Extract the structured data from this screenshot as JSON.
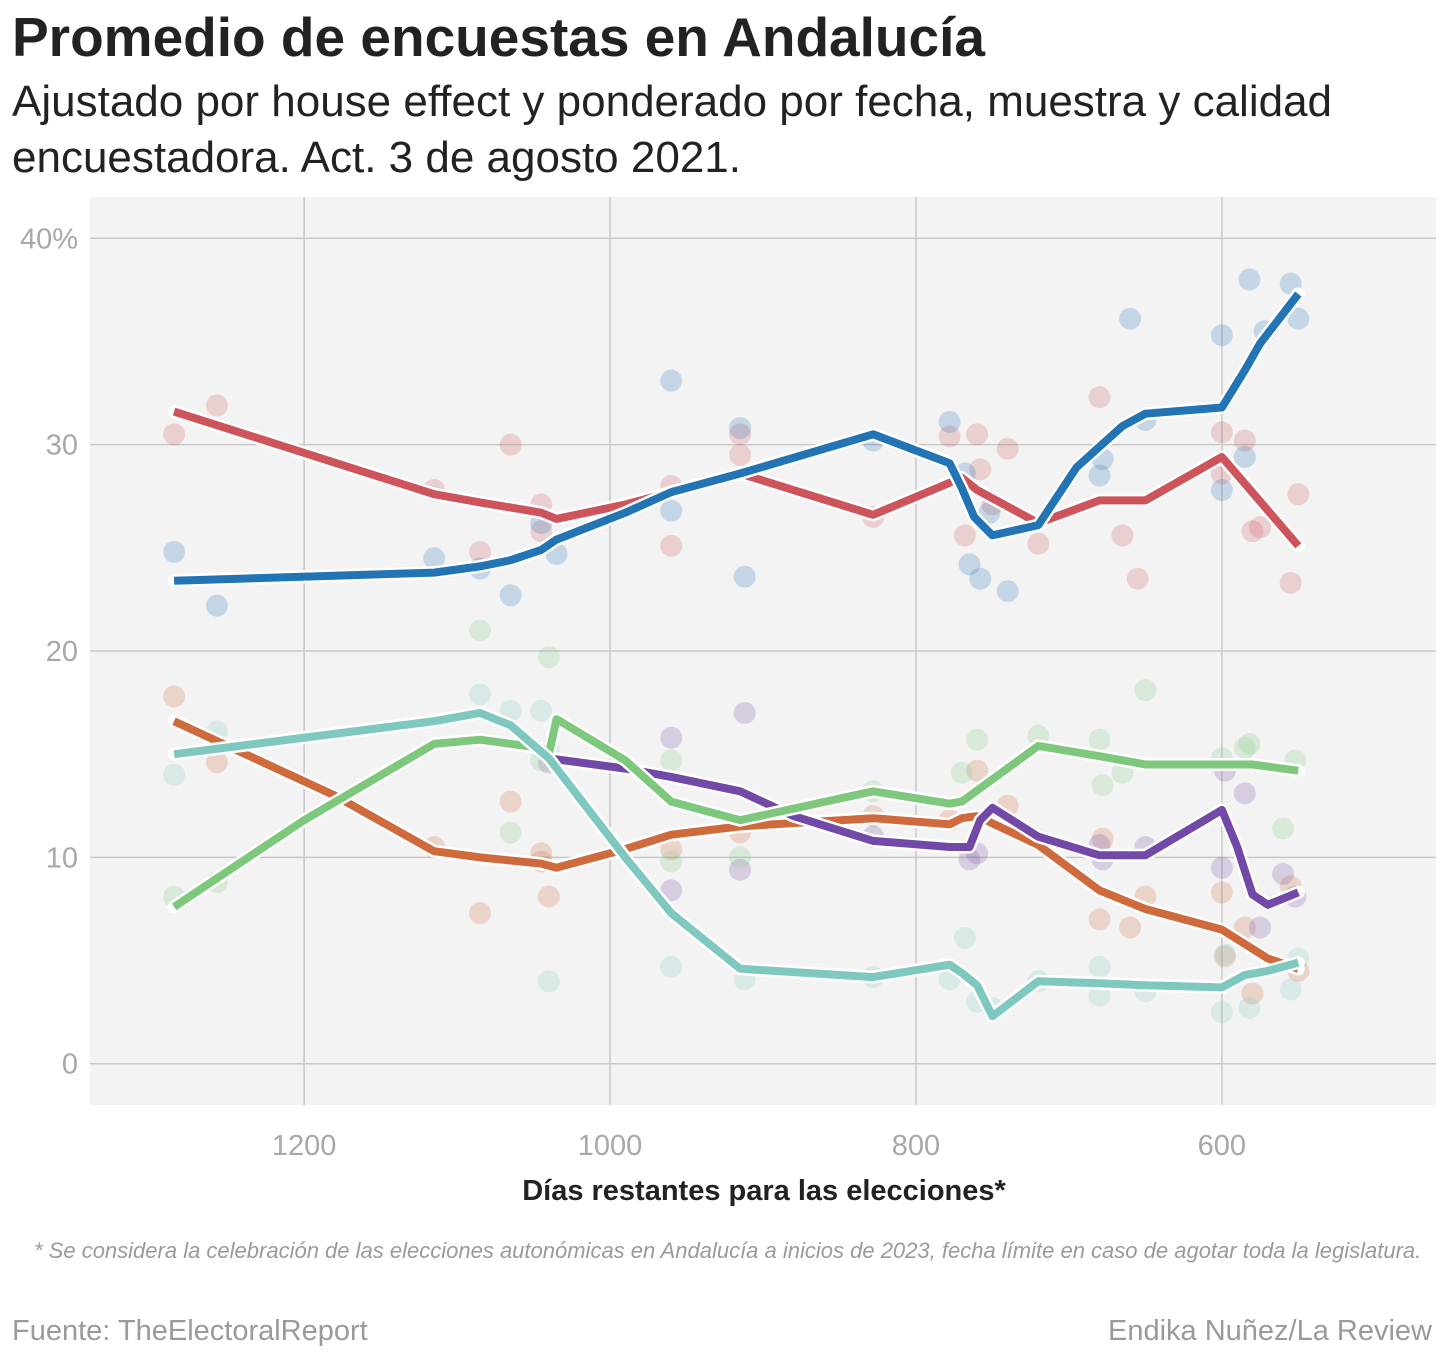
{
  "header": {
    "title": "Promedio de encuestas en Andalucía",
    "subtitle": "Ajustado por house effect y ponderado por fecha, muestra y calidad encuestadora. Act. 3 de agosto 2021."
  },
  "footer": {
    "note": "* Se considera la celebración de las elecciones autonómicas en Andalucía a inicios de 2023, fecha límite en caso de agotar toda la legislatura.",
    "source": "Fuente: TheElectoralReport",
    "credit": "Endika Nuñez/La Review"
  },
  "chart_data": {
    "type": "line",
    "xlabel": "Días restantes para las elecciones*",
    "ylabel": "",
    "x_reversed": true,
    "xlim": [
      1340,
      460
    ],
    "ylim": [
      -2,
      42
    ],
    "x_ticks": [
      1200,
      1000,
      800,
      600
    ],
    "x_tick_labels": [
      "1200",
      "1000",
      "800",
      "600"
    ],
    "y_ticks": [
      0,
      10,
      20,
      30,
      40
    ],
    "y_tick_labels": [
      "0",
      "10",
      "20",
      "30",
      "40%"
    ],
    "grid": true,
    "background": "#f3f3f3",
    "series": [
      {
        "color": "#cd545a",
        "x": [
          1285,
          1115,
          1085,
          1045,
          1035,
          990,
          960,
          915,
          828,
          770,
          760,
          720,
          680,
          650,
          600,
          550
        ],
        "y": [
          31.6,
          27.6,
          27.2,
          26.7,
          26.4,
          27.1,
          27.7,
          28.6,
          26.6,
          28.4,
          27.8,
          26.2,
          27.3,
          27.3,
          29.4,
          25.1
        ],
        "points": [
          [
            1285,
            30.5
          ],
          [
            1257,
            31.9
          ],
          [
            1115,
            27.8
          ],
          [
            1085,
            24.8
          ],
          [
            1065,
            30.0
          ],
          [
            1045,
            27.1
          ],
          [
            1045,
            25.8
          ],
          [
            960,
            25.1
          ],
          [
            960,
            28.0
          ],
          [
            915,
            30.5
          ],
          [
            915,
            29.5
          ],
          [
            828,
            26.5
          ],
          [
            778,
            30.4
          ],
          [
            768,
            25.6
          ],
          [
            760,
            30.5
          ],
          [
            758,
            28.8
          ],
          [
            750,
            27.1
          ],
          [
            740,
            29.8
          ],
          [
            720,
            25.2
          ],
          [
            680,
            32.3
          ],
          [
            665,
            25.6
          ],
          [
            655,
            23.5
          ],
          [
            600,
            30.6
          ],
          [
            600,
            28.6
          ],
          [
            585,
            30.2
          ],
          [
            580,
            25.8
          ],
          [
            575,
            26.0
          ],
          [
            550,
            27.6
          ],
          [
            555,
            23.3
          ]
        ]
      },
      {
        "color": "#2274b4",
        "x": [
          1285,
          1115,
          1085,
          1065,
          1045,
          1035,
          990,
          960,
          915,
          828,
          778,
          770,
          762,
          750,
          720,
          695,
          665,
          650,
          600,
          585,
          575,
          550
        ],
        "y": [
          23.4,
          23.8,
          24.1,
          24.4,
          24.9,
          25.4,
          26.7,
          27.7,
          28.6,
          30.5,
          29.1,
          27.9,
          26.5,
          25.6,
          26.1,
          28.9,
          30.9,
          31.5,
          31.8,
          33.6,
          34.9,
          37.3
        ],
        "points": [
          [
            1285,
            24.8
          ],
          [
            1257,
            22.2
          ],
          [
            1115,
            24.5
          ],
          [
            1085,
            24.0
          ],
          [
            1065,
            22.7
          ],
          [
            1035,
            24.7
          ],
          [
            1045,
            26.2
          ],
          [
            960,
            33.1
          ],
          [
            960,
            26.8
          ],
          [
            915,
            30.8
          ],
          [
            912,
            23.6
          ],
          [
            828,
            30.2
          ],
          [
            778,
            31.1
          ],
          [
            768,
            28.6
          ],
          [
            765,
            24.2
          ],
          [
            758,
            23.5
          ],
          [
            752,
            26.7
          ],
          [
            740,
            22.9
          ],
          [
            680,
            28.5
          ],
          [
            678,
            29.3
          ],
          [
            660,
            36.1
          ],
          [
            650,
            31.2
          ],
          [
            600,
            35.3
          ],
          [
            600,
            27.8
          ],
          [
            585,
            29.4
          ],
          [
            582,
            38.0
          ],
          [
            572,
            35.5
          ],
          [
            555,
            37.8
          ],
          [
            550,
            36.1
          ]
        ]
      },
      {
        "color": "#cf6a3c",
        "x": [
          1285,
          1180,
          1115,
          1085,
          1045,
          1035,
          990,
          960,
          915,
          828,
          778,
          770,
          760,
          720,
          680,
          650,
          600,
          585,
          570,
          550
        ],
        "y": [
          16.6,
          13.0,
          10.3,
          10.0,
          9.7,
          9.5,
          10.4,
          11.1,
          11.5,
          11.9,
          11.6,
          11.9,
          12.0,
          10.6,
          8.4,
          7.5,
          6.5,
          5.8,
          5.1,
          4.6
        ],
        "points": [
          [
            1285,
            17.8
          ],
          [
            1257,
            14.6
          ],
          [
            1115,
            10.5
          ],
          [
            1085,
            7.3
          ],
          [
            1065,
            12.7
          ],
          [
            1045,
            10.2
          ],
          [
            1045,
            9.8
          ],
          [
            1040,
            8.1
          ],
          [
            960,
            10.4
          ],
          [
            915,
            11.2
          ],
          [
            828,
            12.0
          ],
          [
            778,
            11.8
          ],
          [
            760,
            14.2
          ],
          [
            740,
            12.5
          ],
          [
            720,
            10.8
          ],
          [
            680,
            7.0
          ],
          [
            678,
            10.9
          ],
          [
            660,
            6.6
          ],
          [
            650,
            8.1
          ],
          [
            600,
            8.3
          ],
          [
            598,
            5.2
          ],
          [
            585,
            6.6
          ],
          [
            580,
            3.4
          ],
          [
            550,
            4.5
          ],
          [
            555,
            8.6
          ]
        ]
      },
      {
        "color": "#7249a6",
        "x": [
          1040,
          990,
          960,
          915,
          880,
          828,
          778,
          765,
          758,
          750,
          720,
          680,
          650,
          600,
          590,
          580,
          570,
          550
        ],
        "y": [
          14.8,
          14.3,
          13.9,
          13.2,
          12.0,
          10.8,
          10.5,
          10.5,
          11.8,
          12.4,
          11.0,
          10.1,
          10.1,
          12.3,
          10.5,
          8.2,
          7.7,
          8.3
        ],
        "points": [
          [
            1040,
            14.6
          ],
          [
            960,
            15.8
          ],
          [
            960,
            8.4
          ],
          [
            912,
            17.0
          ],
          [
            915,
            9.4
          ],
          [
            828,
            11.0
          ],
          [
            765,
            9.9
          ],
          [
            760,
            10.2
          ],
          [
            750,
            12.0
          ],
          [
            680,
            10.6
          ],
          [
            678,
            9.9
          ],
          [
            650,
            10.5
          ],
          [
            600,
            9.5
          ],
          [
            598,
            14.2
          ],
          [
            585,
            13.1
          ],
          [
            575,
            6.6
          ],
          [
            560,
            9.2
          ],
          [
            552,
            8.1
          ]
        ]
      },
      {
        "color": "#7ec87e",
        "x": [
          1285,
          1200,
          1115,
          1085,
          1045,
          1040,
          1035,
          990,
          960,
          915,
          828,
          778,
          770,
          720,
          680,
          650,
          600,
          580,
          550
        ],
        "y": [
          7.6,
          11.8,
          15.5,
          15.7,
          15.3,
          15.0,
          16.7,
          14.7,
          12.7,
          11.8,
          13.2,
          12.6,
          12.7,
          15.4,
          14.9,
          14.5,
          14.5,
          14.5,
          14.2
        ],
        "points": [
          [
            1285,
            8.1
          ],
          [
            1257,
            8.8
          ],
          [
            1085,
            21.0
          ],
          [
            1065,
            11.2
          ],
          [
            1040,
            19.7
          ],
          [
            1045,
            14.7
          ],
          [
            960,
            14.7
          ],
          [
            960,
            9.8
          ],
          [
            915,
            10.0
          ],
          [
            828,
            13.2
          ],
          [
            770,
            14.1
          ],
          [
            760,
            15.7
          ],
          [
            720,
            15.9
          ],
          [
            680,
            15.7
          ],
          [
            678,
            13.5
          ],
          [
            665,
            14.1
          ],
          [
            650,
            18.1
          ],
          [
            600,
            14.8
          ],
          [
            585,
            15.3
          ],
          [
            582,
            15.5
          ],
          [
            560,
            11.4
          ],
          [
            552,
            14.7
          ]
        ]
      },
      {
        "color": "#7ec8bf",
        "x": [
          1285,
          1115,
          1085,
          1065,
          1040,
          990,
          960,
          915,
          828,
          778,
          770,
          760,
          750,
          720,
          680,
          650,
          600,
          585,
          570,
          550
        ],
        "y": [
          15.0,
          16.6,
          17.0,
          16.4,
          14.8,
          10.0,
          7.3,
          4.6,
          4.2,
          4.8,
          4.4,
          3.8,
          2.3,
          4.0,
          3.9,
          3.8,
          3.7,
          4.3,
          4.5,
          4.9
        ],
        "points": [
          [
            1285,
            14.0
          ],
          [
            1257,
            16.1
          ],
          [
            1085,
            17.9
          ],
          [
            1065,
            17.1
          ],
          [
            1045,
            17.1
          ],
          [
            1040,
            15.2
          ],
          [
            1040,
            4.0
          ],
          [
            960,
            4.7
          ],
          [
            912,
            4.1
          ],
          [
            828,
            4.2
          ],
          [
            778,
            4.1
          ],
          [
            768,
            6.1
          ],
          [
            760,
            3.0
          ],
          [
            750,
            2.7
          ],
          [
            720,
            4.0
          ],
          [
            680,
            4.7
          ],
          [
            680,
            3.3
          ],
          [
            650,
            3.5
          ],
          [
            600,
            2.5
          ],
          [
            598,
            5.3
          ],
          [
            582,
            2.7
          ],
          [
            555,
            3.6
          ],
          [
            550,
            5.1
          ]
        ]
      }
    ]
  }
}
